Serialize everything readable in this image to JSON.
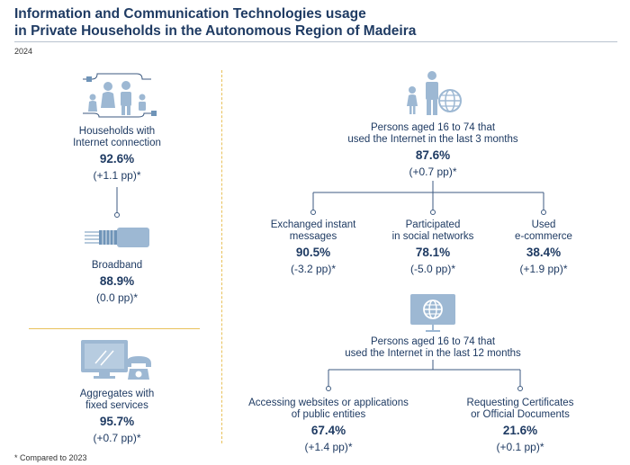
{
  "header": {
    "title_line1": "Information and Communication Technologies usage",
    "title_line2": "in Private Households in the Autonomous Region of Madeira",
    "year": "2024"
  },
  "footnote": "* Compared to 2023",
  "left": {
    "households": {
      "label1": "Households with",
      "label2": "Internet connection",
      "value": "92.6%",
      "change": "(+1.1 pp)*"
    },
    "broadband": {
      "label1": "Broadband",
      "value": "88.9%",
      "change": "(0.0 pp)*"
    },
    "fixed": {
      "label1": "Aggregates with",
      "label2": "fixed services",
      "value": "95.7%",
      "change": "(+0.7 pp)*"
    }
  },
  "right": {
    "internet3m": {
      "label1": "Persons aged 16 to 74 that",
      "label2": "used the Internet in the last 3 months",
      "value": "87.6%",
      "change": "(+0.7 pp)*"
    },
    "messages": {
      "label1": "Exchanged instant",
      "label2": "messages",
      "value": "90.5%",
      "change": "(-3.2 pp)*"
    },
    "social": {
      "label1": "Participated",
      "label2": "in social networks",
      "value": "78.1%",
      "change": "(-5.0 pp)*"
    },
    "ecommerce": {
      "label1": "Used",
      "label2": "e-commerce",
      "value": "38.4%",
      "change": "(+1.9 pp)*"
    },
    "internet12m": {
      "label1": "Persons aged 16 to 74 that",
      "label2": "used the Internet in the last 12 months"
    },
    "public": {
      "label1": "Accessing websites or applications",
      "label2": "of public entities",
      "value": "67.4%",
      "change": "(+1.4 pp)*"
    },
    "certificates": {
      "label1": "Requesting Certificates",
      "label2": "or Official Documents",
      "value": "21.6%",
      "change": "(+0.1 pp)*"
    }
  },
  "icons": {
    "family": "family-icon",
    "cable": "network-cable-icon",
    "tv_phone": "tv-phone-icon",
    "person_globe": "person-globe-icon",
    "monitor_globe": "monitor-globe-icon"
  },
  "colors": {
    "text": "#1f3b63",
    "icon": "#9db8d3",
    "icon_dark": "#6f94b8",
    "separator": "#e8c15a",
    "line": "#3d5a80"
  }
}
